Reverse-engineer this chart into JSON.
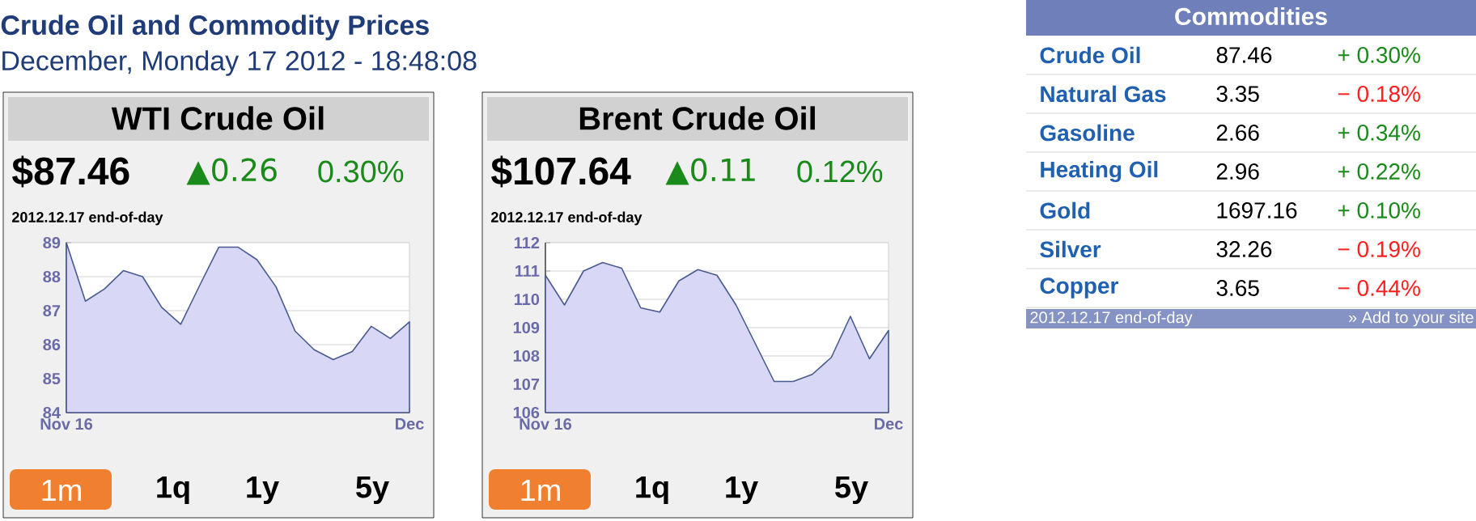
{
  "chart_data": [
    {
      "type": "other",
      "title": "Crude Oil and Commodity Prices",
      "subtitle": "December, Monday 17 2012 - 18:48:08"
    },
    {
      "type": "area",
      "title": "WTI Crude Oil",
      "categories": [
        "Nov 16",
        null,
        null,
        null,
        null,
        null,
        null,
        null,
        null,
        null,
        null,
        null,
        null,
        null,
        null,
        null,
        null,
        null,
        "Dec"
      ],
      "values": [
        89.0,
        87.28,
        87.64,
        88.18,
        88.0,
        87.1,
        86.6,
        87.75,
        88.87,
        88.87,
        88.5,
        87.7,
        86.4,
        85.85,
        85.56,
        85.8,
        86.54,
        86.18,
        86.67
      ],
      "color": "#d8d8f6",
      "ylim": [
        84,
        89
      ],
      "yticks": [
        84,
        85,
        86,
        87,
        88,
        89
      ],
      "grid": true,
      "annotations": [
        "$87.46",
        "▲0.26",
        "0.30%",
        "2012.12.17 end-of-day",
        "1m",
        "1q",
        "1y",
        "5y"
      ]
    },
    {
      "type": "area",
      "title": "Brent Crude Oil",
      "categories": [
        "Nov 16",
        null,
        null,
        null,
        null,
        null,
        null,
        null,
        null,
        null,
        null,
        null,
        null,
        null,
        null,
        null,
        null,
        null,
        "Dec"
      ],
      "values": [
        110.85,
        109.8,
        111.0,
        111.3,
        111.1,
        109.7,
        109.55,
        110.65,
        111.05,
        110.85,
        109.8,
        108.45,
        107.1,
        107.1,
        107.35,
        107.95,
        109.4,
        107.9,
        108.9
      ],
      "color": "#d8d8f6",
      "ylim": [
        106,
        112
      ],
      "yticks": [
        106,
        107,
        108,
        109,
        110,
        111,
        112
      ],
      "grid": true,
      "annotations": [
        "$107.64",
        "▲0.11",
        "0.12%",
        "2012.12.17 end-of-day",
        "1m",
        "1q",
        "1y",
        "5y"
      ]
    },
    {
      "type": "other",
      "title": "Commodities",
      "categories": [
        "Crude Oil",
        "Natural Gas",
        "Gasoline",
        "Heating Oil",
        "Gold",
        "Silver",
        "Copper"
      ],
      "data_labels": true,
      "series": [
        {
          "values": [
            87.46,
            3.35,
            2.66,
            2.96,
            1697.16,
            32.26,
            3.65
          ]
        },
        {
          "values": [
            0.3,
            -0.18,
            0.34,
            0.22,
            0.1,
            -0.19,
            -0.44
          ],
          "value_labels": [
            "+ 0.30%",
            "− 0.18%",
            "+ 0.34%",
            "+ 0.22%",
            "+ 0.10%",
            "− 0.19%",
            "− 0.44%"
          ],
          "colors": [
            "#1a8a1a",
            "#ff2020",
            "#1a8a1a",
            "#1a8a1a",
            "#1a8a1a",
            "#ff2020",
            "#ff2020"
          ]
        }
      ],
      "annotations": [
        "2012.12.17 end-of-day",
        "» Add to your site"
      ]
    }
  ]
}
